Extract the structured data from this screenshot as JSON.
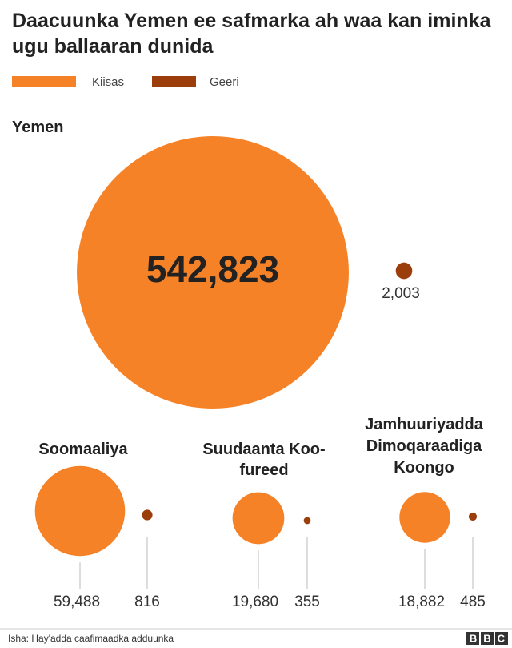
{
  "chart_data": {
    "type": "bubble",
    "title": "Daacuunka Yemen ee safmarka ah waa kan iminka ugu ballaaran dunida",
    "categories": [
      "Yemen",
      "Soomaaliya",
      "Suudaanta Koo-fureed",
      "Jamhuuriyadda Dimoqaraadiga Koongo"
    ],
    "series": [
      {
        "name": "Kiisas",
        "color": "#f68228",
        "values": [
          542823,
          59488,
          19680,
          18882
        ],
        "value_labels": [
          "542,823",
          "59,488",
          "19,680",
          "18,882"
        ]
      },
      {
        "name": "Geeri",
        "color": "#9c3e0c",
        "values": [
          2003,
          816,
          355,
          485
        ],
        "value_labels": [
          "2,003",
          "816",
          "355",
          "485"
        ]
      }
    ],
    "source": "Isha:  Hay'adda caafimaadka adduunka",
    "brand": "BBC"
  }
}
